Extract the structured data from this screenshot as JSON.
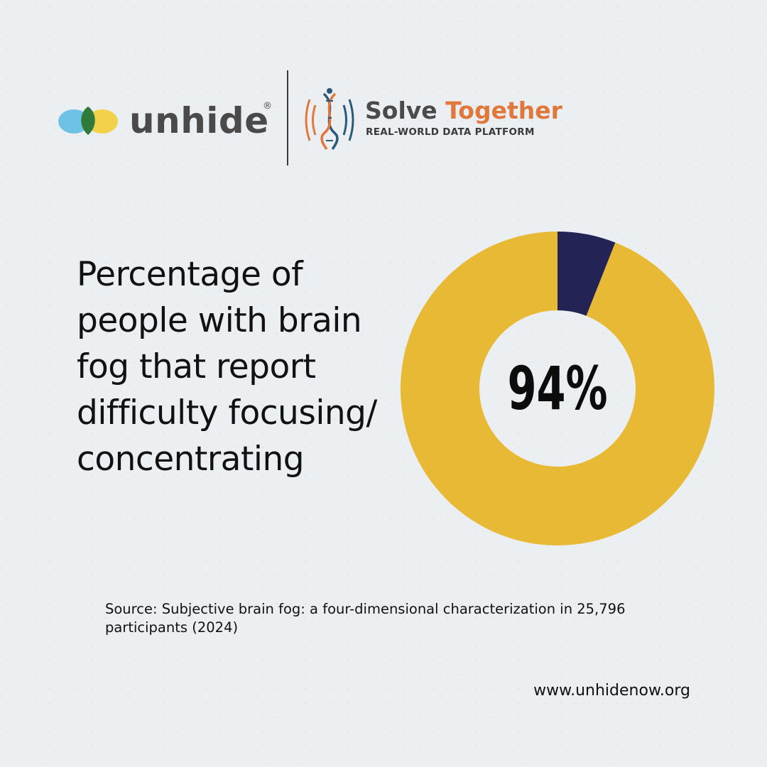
{
  "logos": {
    "unhide": {
      "wordmark": "unhide",
      "registered": "®",
      "colors": {
        "left_petal": "#6ec3e4",
        "center_leaf": "#2f7a3a",
        "right_petal": "#f1d24a",
        "text": "#4a4a4a"
      }
    },
    "solve_together": {
      "word_solve": "Solve",
      "word_together": "Together",
      "tagline": "REAL-WORLD DATA PLATFORM",
      "colors": {
        "solve": "#4a4a4a",
        "together": "#e0773c",
        "dna": "#2a5a7a"
      }
    }
  },
  "headline": "Percentage of people with brain fog that report difficulty focusing/ concentrating",
  "chart_data": {
    "type": "pie",
    "donut": true,
    "center_label": "94%",
    "slices": [
      {
        "value": 94,
        "color": "#e8b935"
      },
      {
        "value": 6,
        "color": "#232356"
      }
    ],
    "start": "top",
    "direction": "counter-clockwise for the larger share"
  },
  "source": "Source: Subjective brain fog: a four-dimensional characterization in 25,796 participants (2024)",
  "url": "www.unhidenow.org"
}
